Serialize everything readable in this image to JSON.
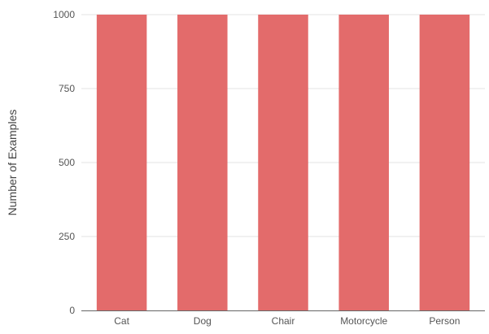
{
  "chart_data": {
    "type": "bar",
    "title": "",
    "xlabel": "",
    "ylabel": "Number of Examples",
    "categories": [
      "Cat",
      "Dog",
      "Chair",
      "Motorcycle",
      "Person"
    ],
    "values": [
      1000,
      1000,
      1000,
      1000,
      1000
    ],
    "ylim": [
      0,
      1000
    ],
    "yticks": [
      0,
      250,
      500,
      750,
      1000
    ],
    "grid": true,
    "legend": "none",
    "bar_color": "#e36b6b",
    "grid_color": "#e3e3e3",
    "axis_color": "#666666",
    "text_color": "#555555"
  }
}
